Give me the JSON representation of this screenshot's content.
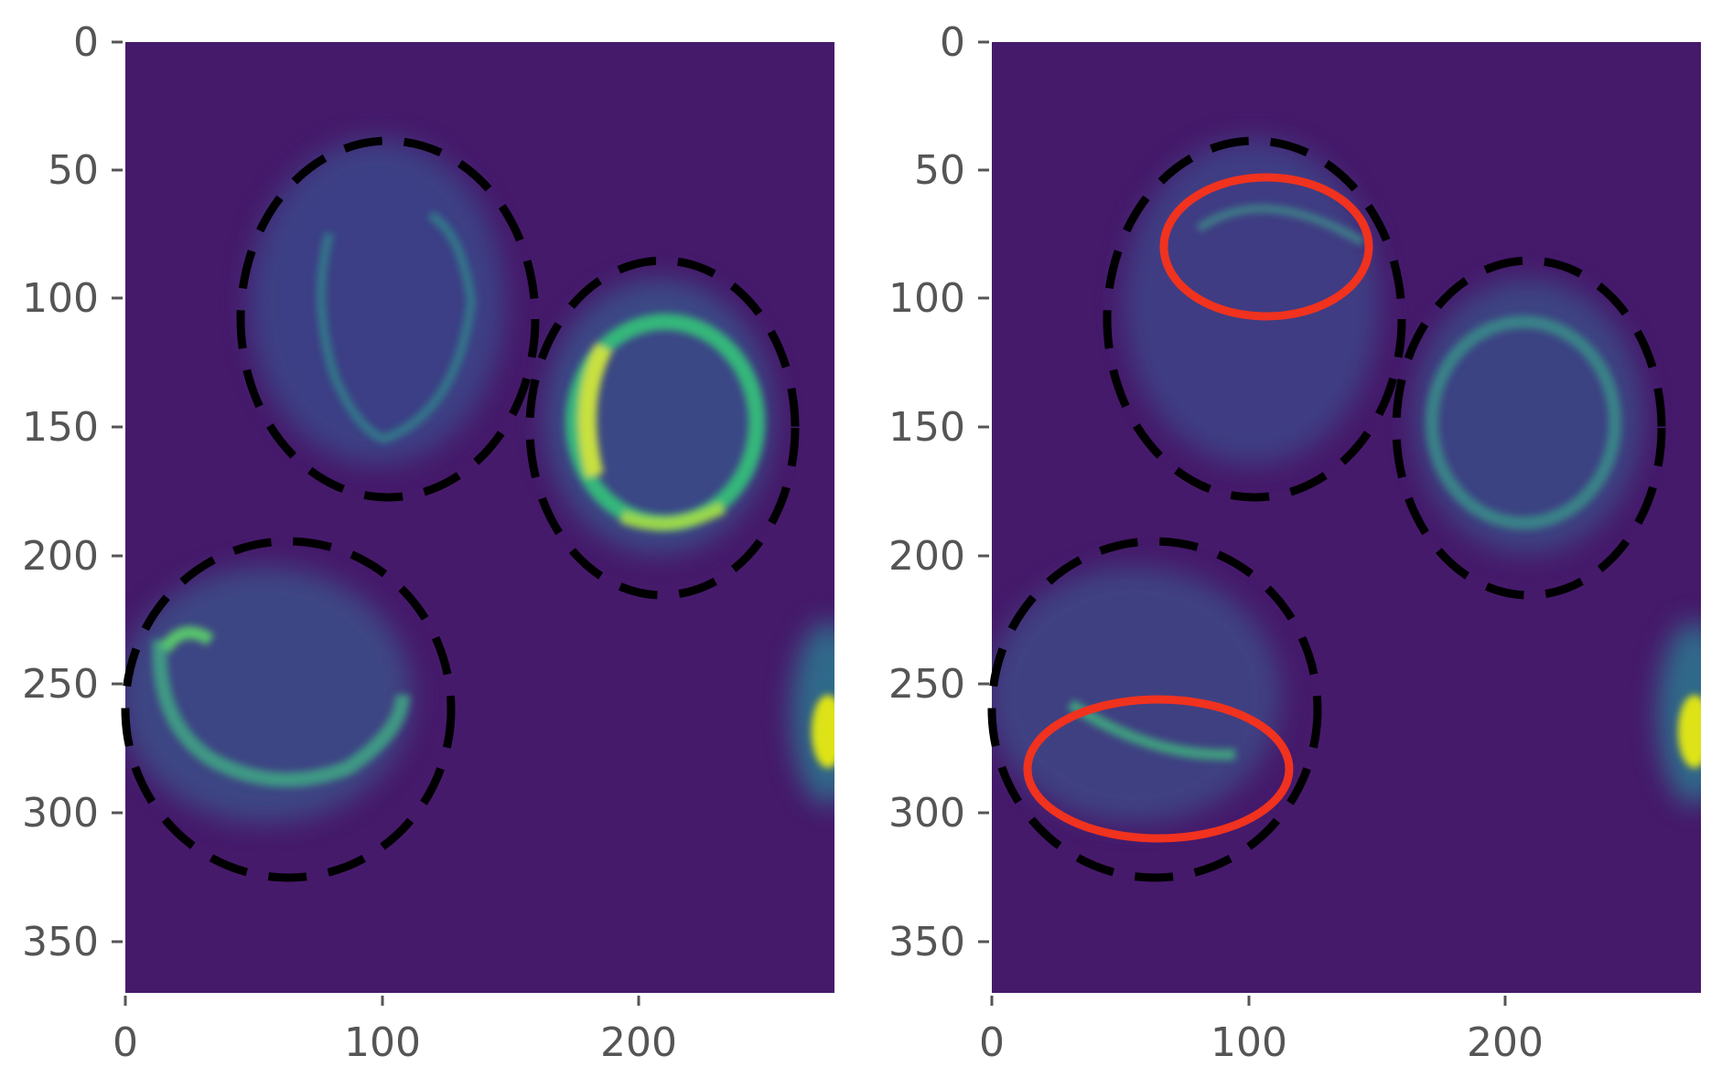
{
  "figure": {
    "panels": [
      {
        "id": "left",
        "x_ticks": [
          "0",
          "100",
          "200"
        ],
        "y_ticks": [
          "0",
          "50",
          "100",
          "150",
          "200",
          "250",
          "300",
          "350"
        ],
        "dashed_ellipses": [
          {
            "cx": 102,
            "cy": 108,
            "rx": 58,
            "ry": 71
          },
          {
            "cx": 208,
            "cy": 152,
            "rx": 52,
            "ry": 66
          },
          {
            "cx": 62,
            "cy": 261,
            "rx": 64,
            "ry": 66
          }
        ],
        "red_ellipses": []
      },
      {
        "id": "right",
        "x_ticks": [
          "0",
          "100",
          "200"
        ],
        "y_ticks": [
          "0",
          "50",
          "100",
          "150",
          "200",
          "250",
          "300",
          "350"
        ],
        "dashed_ellipses": [
          {
            "cx": 102,
            "cy": 108,
            "rx": 58,
            "ry": 71
          },
          {
            "cx": 208,
            "cy": 152,
            "rx": 52,
            "ry": 66
          },
          {
            "cx": 62,
            "cy": 261,
            "rx": 64,
            "ry": 66
          }
        ],
        "red_ellipses": [
          {
            "cx": 107,
            "cy": 80,
            "rx": 41,
            "ry": 28
          },
          {
            "cx": 65,
            "cy": 283,
            "rx": 51,
            "ry": 28
          }
        ]
      }
    ],
    "colors": {
      "background": "#461a6b",
      "cell_mid": "#3b528b",
      "ring_left": "#3fbb80",
      "ring_bright": "#bfe346",
      "ring_right": "#3f8e8a",
      "dashed": "#000000",
      "red": "#f0321e",
      "tick_text": "#555555"
    }
  }
}
